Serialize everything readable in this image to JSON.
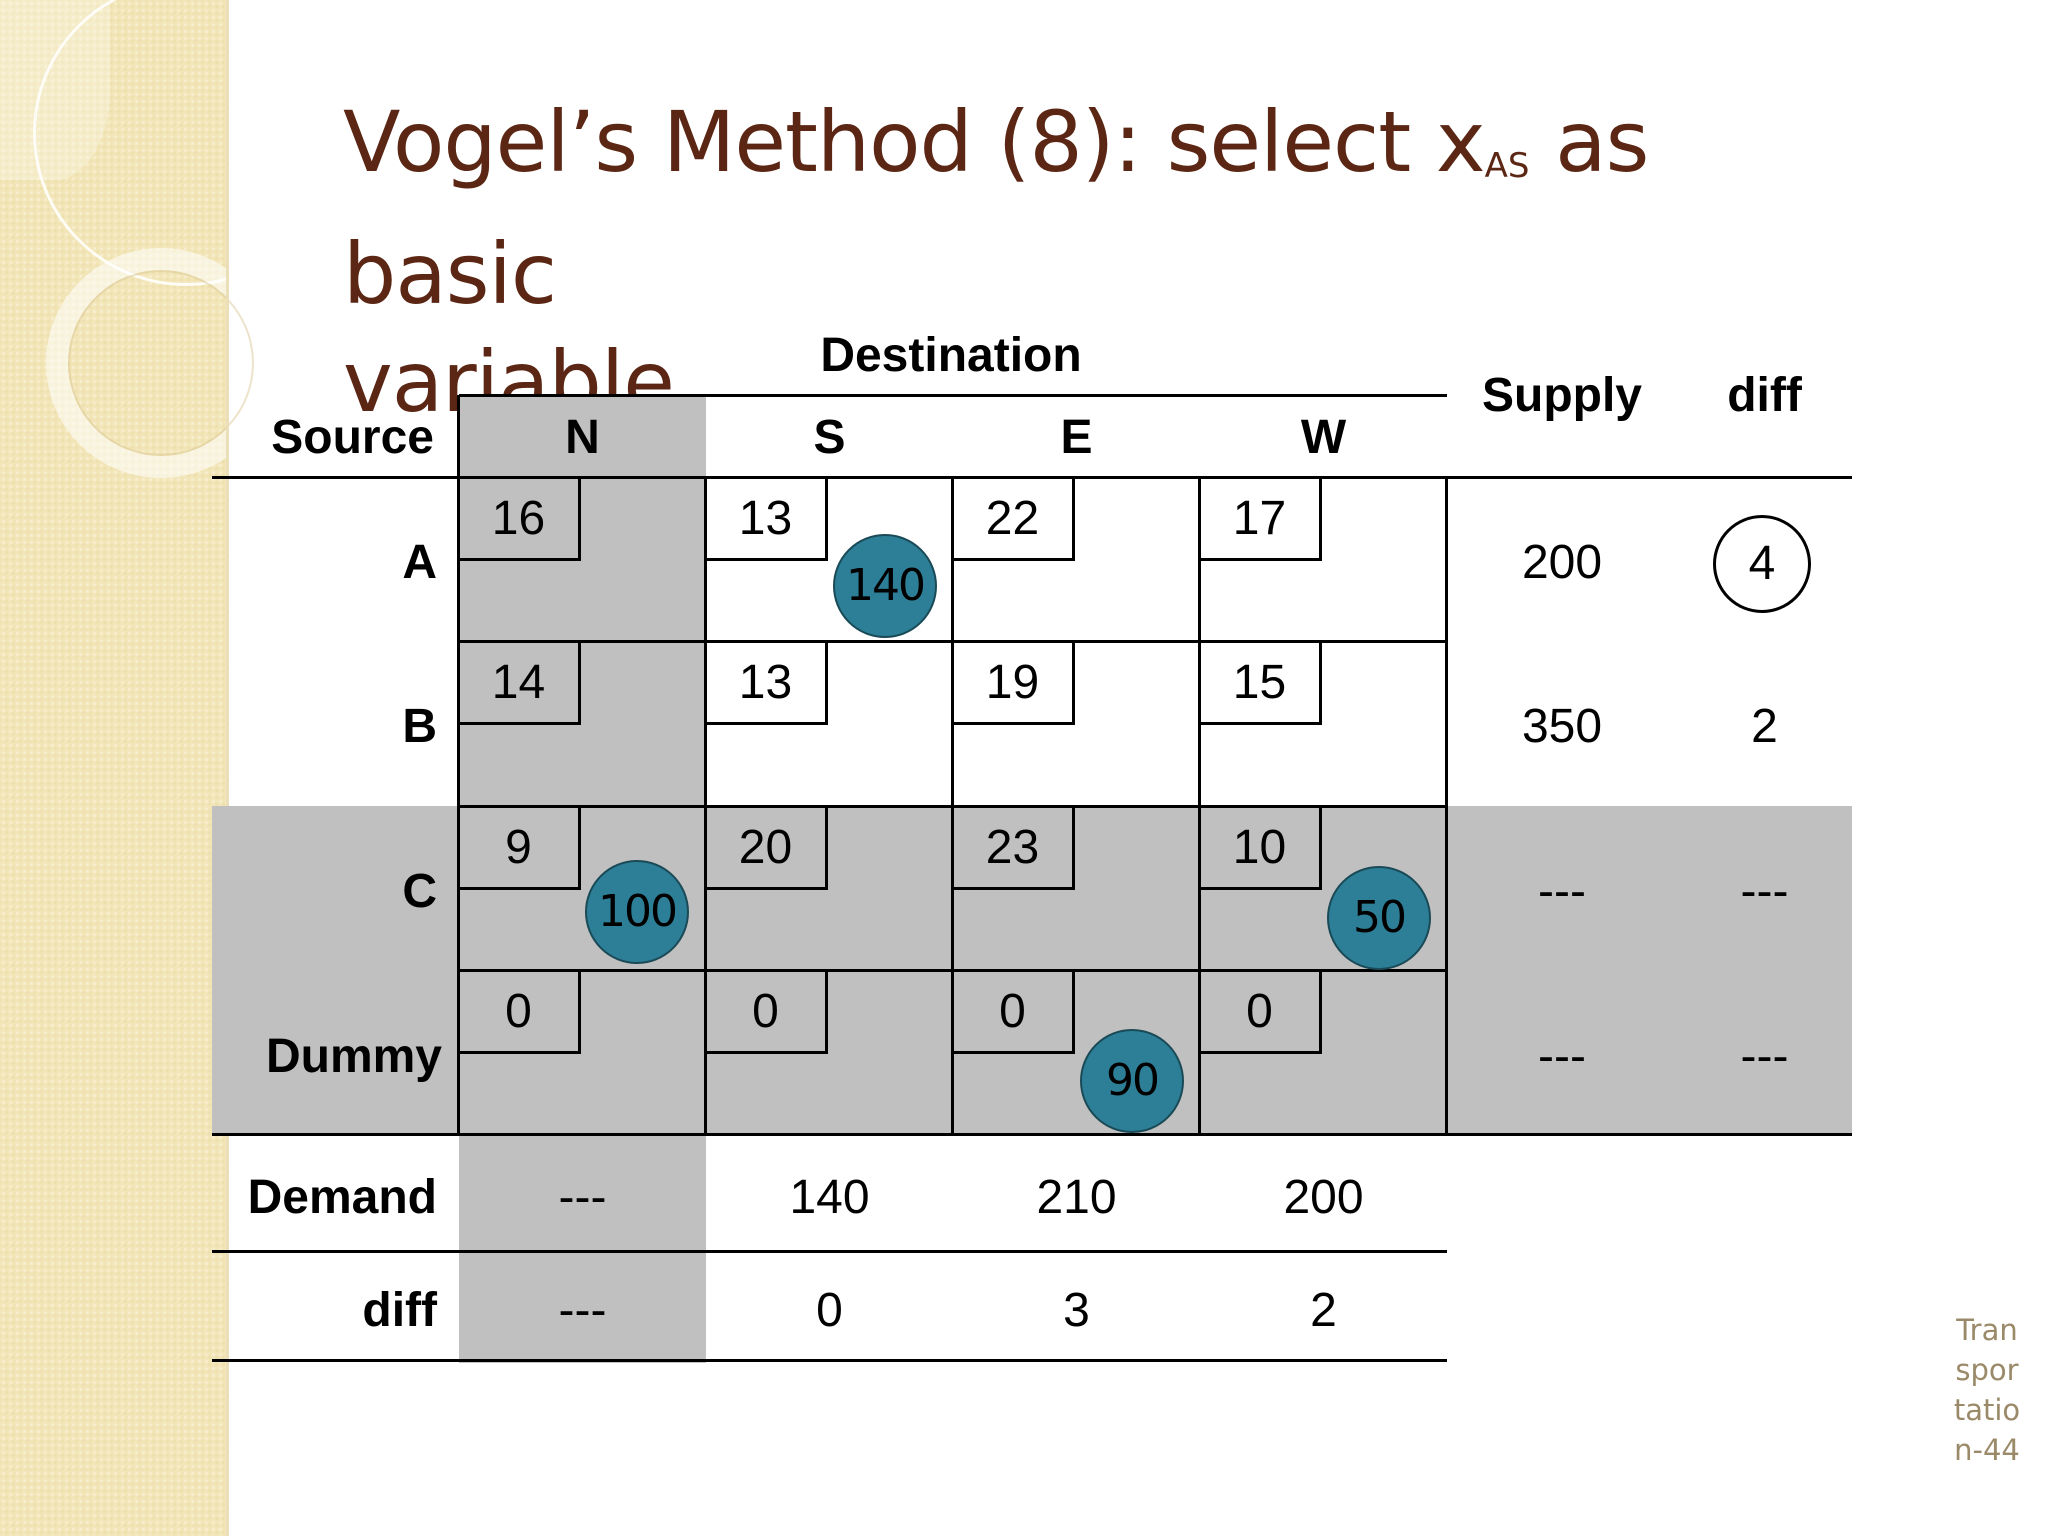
{
  "slide": {
    "title_main": "Vogel’s Method (8): select x",
    "title_sub": "AS",
    "title_rest": " as basic",
    "title_line2": "variable",
    "footer": "Transportation-44"
  },
  "table": {
    "destination_label": "Destination",
    "source_label": "Source",
    "supply_label": "Supply",
    "diff_label": "diff",
    "columns": [
      "N",
      "S",
      "E",
      "W"
    ],
    "rows": [
      {
        "label": "A",
        "costs": [
          "16",
          "13",
          "22",
          "17"
        ],
        "supply": "200",
        "diff": "4"
      },
      {
        "label": "B",
        "costs": [
          "14",
          "13",
          "19",
          "15"
        ],
        "supply": "350",
        "diff": "2"
      },
      {
        "label": "C",
        "costs": [
          "9",
          "20",
          "23",
          "10"
        ],
        "supply": "---",
        "diff": "---"
      },
      {
        "label": "Dummy",
        "costs": [
          "0",
          "0",
          "0",
          "0"
        ],
        "supply": "---",
        "diff": "---"
      }
    ],
    "allocations": {
      "A_S": "140",
      "C_N": "100",
      "C_W": "50",
      "Dummy_E": "90"
    },
    "demand_label": "Demand",
    "demand": [
      "---",
      "140",
      "210",
      "200"
    ],
    "col_diff_label": "diff",
    "col_diff": [
      "---",
      "0",
      "3",
      "2"
    ]
  }
}
